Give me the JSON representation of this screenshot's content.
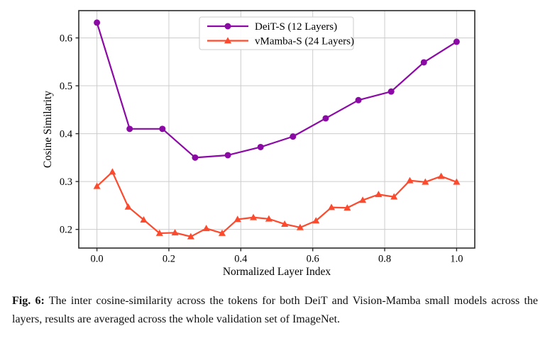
{
  "figure": {
    "caption": {
      "label": "Fig. 6:",
      "text": "The inter cosine-similarity across the tokens for both DeiT and Vision-Mamba small models across the layers, results are averaged across the whole validation set of ImageNet."
    }
  },
  "chart_data": {
    "type": "line",
    "title": "",
    "xlabel": "Normalized Layer Index",
    "ylabel": "Cosine Similarity",
    "xlim": [
      -0.0505,
      1.0505
    ],
    "ylim": [
      0.161,
      0.657
    ],
    "x_ticks": [
      0.0,
      0.2,
      0.4,
      0.6,
      0.8,
      1.0
    ],
    "x_tick_labels": [
      "0.0",
      "0.2",
      "0.4",
      "0.6",
      "0.8",
      "1.0"
    ],
    "y_ticks": [
      0.2,
      0.3,
      0.4,
      0.5,
      0.6
    ],
    "y_tick_labels": [
      "0.2",
      "0.3",
      "0.4",
      "0.5",
      "0.6"
    ],
    "grid": true,
    "legend_position": "upper center",
    "colors": {
      "deit": "#8b0aa5",
      "vmamba": "#fb4a2d",
      "grid": "#cccccc",
      "frame": "#2b2b2b"
    },
    "series": [
      {
        "name": "DeiT-S (12 Layers)",
        "marker": "circle",
        "color_key": "deit",
        "x": [
          0.0,
          0.091,
          0.182,
          0.273,
          0.364,
          0.455,
          0.545,
          0.636,
          0.727,
          0.818,
          0.909,
          1.0
        ],
        "y": [
          0.632,
          0.41,
          0.41,
          0.35,
          0.355,
          0.372,
          0.394,
          0.432,
          0.47,
          0.488,
          0.549,
          0.592
        ]
      },
      {
        "name": "vMamba-S (24 Layers)",
        "marker": "triangle",
        "color_key": "vmamba",
        "x": [
          0.0,
          0.043,
          0.087,
          0.13,
          0.174,
          0.217,
          0.261,
          0.304,
          0.348,
          0.391,
          0.435,
          0.478,
          0.522,
          0.565,
          0.609,
          0.652,
          0.696,
          0.739,
          0.783,
          0.826,
          0.87,
          0.913,
          0.957,
          1.0
        ],
        "y": [
          0.29,
          0.32,
          0.247,
          0.22,
          0.192,
          0.193,
          0.185,
          0.202,
          0.192,
          0.221,
          0.225,
          0.222,
          0.211,
          0.204,
          0.218,
          0.246,
          0.245,
          0.261,
          0.273,
          0.268,
          0.302,
          0.299,
          0.311,
          0.299
        ]
      }
    ]
  }
}
